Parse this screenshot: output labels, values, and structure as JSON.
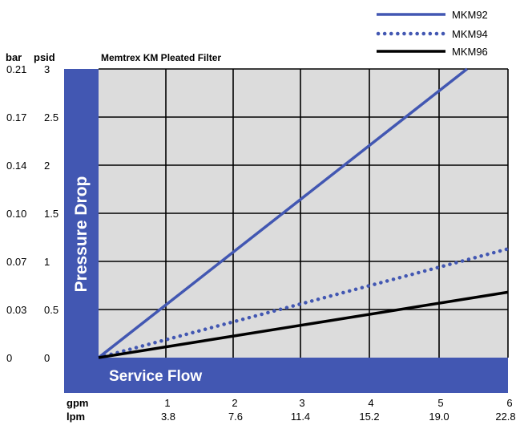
{
  "chart_data": {
    "type": "line",
    "title": "Memtrex KM Pleated Filter",
    "xlabel": "Service Flow",
    "ylabel": "Pressure Drop",
    "x_units": {
      "primary": "gpm",
      "secondary": "lpm"
    },
    "y_units": {
      "primary": "psid",
      "secondary": "bar"
    },
    "x_ticks_gpm": [
      "1",
      "2",
      "3",
      "4",
      "5",
      "6"
    ],
    "x_ticks_lpm": [
      "3.8",
      "7.6",
      "11.4",
      "15.2",
      "19.0",
      "22.8"
    ],
    "y_ticks_psid": [
      "0",
      "0.5",
      "1",
      "1.5",
      "2",
      "2.5",
      "3"
    ],
    "y_ticks_bar": [
      "0",
      "0.03",
      "0.07",
      "0.10",
      "0.14",
      "0.17",
      "0.21"
    ],
    "xlim": [
      0,
      6
    ],
    "ylim": [
      0,
      3
    ],
    "grid": true,
    "legend_position": "top-right",
    "series": [
      {
        "name": "MKM92",
        "style": "solid",
        "color": "#4257b2",
        "x": [
          0,
          5.4
        ],
        "y": [
          0,
          3
        ]
      },
      {
        "name": "MKM94",
        "style": "dotted",
        "color": "#4257b2",
        "x": [
          0,
          6
        ],
        "y": [
          0,
          1.13
        ]
      },
      {
        "name": "MKM96",
        "style": "solid",
        "color": "#000000",
        "x": [
          0,
          6
        ],
        "y": [
          0,
          0.68
        ]
      }
    ]
  },
  "colors": {
    "frame_blue": "#4257b2",
    "plot_bg": "#dcdcdc",
    "grid": "#000000"
  }
}
